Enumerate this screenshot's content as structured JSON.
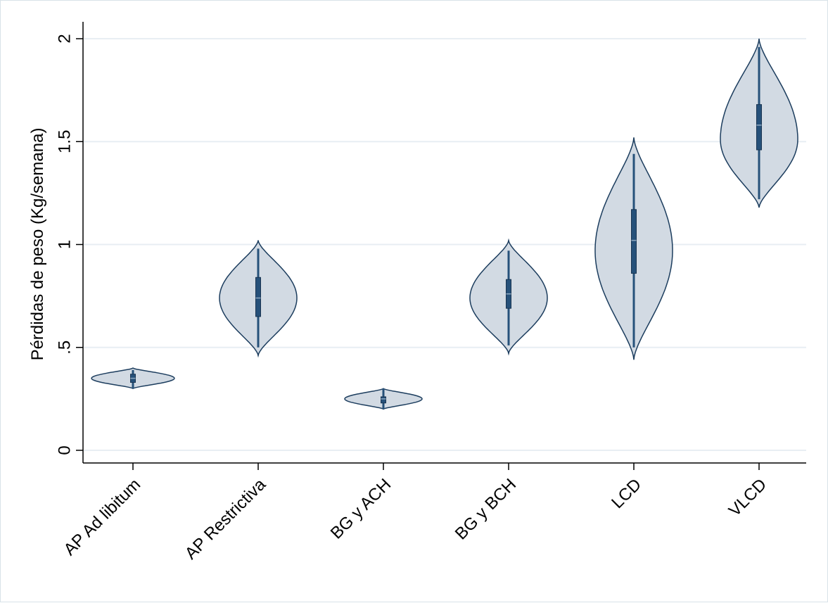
{
  "chart_data": {
    "type": "violin",
    "ylabel": "Pérdidas de peso (Kg/semana)",
    "ylim": [
      0,
      2
    ],
    "yticks": [
      {
        "value": 0,
        "label": "0"
      },
      {
        "value": 0.5,
        "label": ".5"
      },
      {
        "value": 1,
        "label": "1"
      },
      {
        "value": 1.5,
        "label": "1.5"
      },
      {
        "value": 2,
        "label": "2"
      }
    ],
    "grid": true,
    "categories": [
      "AP Ad libitum",
      "AP Restrictiva",
      "BG y ACH",
      "BG y BCH",
      "LCD",
      "VLCD"
    ],
    "groups": [
      {
        "name": "AP Ad libitum",
        "min": 0.3,
        "q1": 0.33,
        "median": 0.35,
        "q3": 0.37,
        "max": 0.39,
        "lo": 0.3,
        "hi": 0.4,
        "mode": 0.35,
        "width": 0.45
      },
      {
        "name": "AP Restrictiva",
        "min": 0.5,
        "q1": 0.65,
        "median": 0.74,
        "q3": 0.84,
        "max": 0.98,
        "lo": 0.46,
        "hi": 1.02,
        "mode": 0.74,
        "width": 0.42
      },
      {
        "name": "BG y ACH",
        "min": 0.2,
        "q1": 0.23,
        "median": 0.25,
        "q3": 0.26,
        "max": 0.3,
        "lo": 0.2,
        "hi": 0.3,
        "mode": 0.25,
        "width": 0.42
      },
      {
        "name": "BG y BCH",
        "min": 0.51,
        "q1": 0.69,
        "median": 0.76,
        "q3": 0.83,
        "max": 0.97,
        "lo": 0.47,
        "hi": 1.02,
        "mode": 0.74,
        "width": 0.42
      },
      {
        "name": "LCD",
        "min": 0.5,
        "q1": 0.86,
        "median": 1.02,
        "q3": 1.17,
        "max": 1.44,
        "lo": 0.44,
        "hi": 1.52,
        "mode": 0.97,
        "width": 0.42
      },
      {
        "name": "VLCD",
        "min": 1.22,
        "q1": 1.46,
        "median": 1.58,
        "q3": 1.68,
        "max": 1.96,
        "lo": 1.18,
        "hi": 2.0,
        "mode": 1.51,
        "width": 0.42
      }
    ],
    "fill_color": "#d2dae3",
    "line_color": "#1c3d5e",
    "box_color": "#26517a",
    "grid_color": "#e8eef3"
  }
}
